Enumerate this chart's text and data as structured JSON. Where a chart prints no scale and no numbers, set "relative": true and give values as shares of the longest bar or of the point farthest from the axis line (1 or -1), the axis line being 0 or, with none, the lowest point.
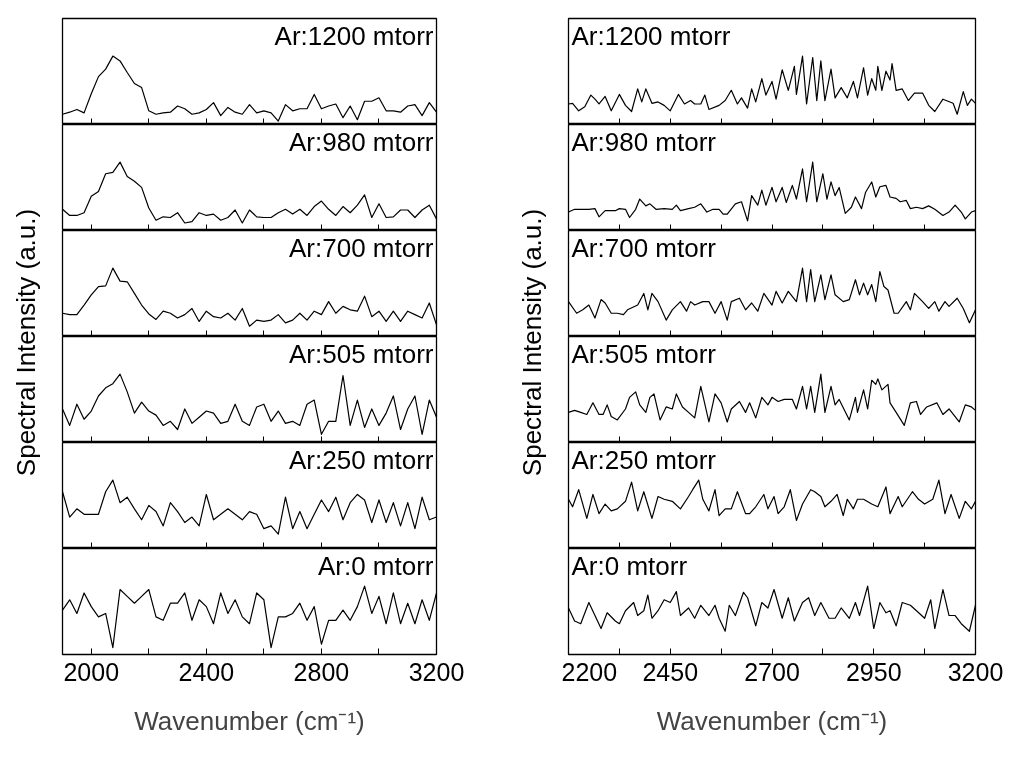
{
  "chart_data": [
    {
      "type": "line",
      "relative": true,
      "ylabel": "Spectral Intensity (a.u.)",
      "annotations": [
        "Ar:1200 mtorr"
      ],
      "xlim": [
        1900,
        3200
      ],
      "xticks": [
        2000,
        {
          "value": 2200,
          "label": null
        },
        2400,
        {
          "value": 2600,
          "label": null
        },
        2800,
        {
          "value": 3000,
          "label": null
        },
        3200
      ],
      "tick_labels": false,
      "x": [
        1900,
        1925,
        1950,
        1975,
        2000,
        2025,
        2050,
        2075,
        2100,
        2125,
        2150,
        2175,
        2200,
        2225,
        2250,
        2275,
        2300,
        2325,
        2350,
        2375,
        2400,
        2425,
        2450,
        2475,
        2500,
        2525,
        2550,
        2575,
        2600,
        2625,
        2650,
        2675,
        2700,
        2725,
        2750,
        2775,
        2800,
        2825,
        2850,
        2875,
        2900,
        2925,
        2950,
        2975,
        3000,
        3025,
        3050,
        3075,
        3100,
        3125,
        3150,
        3175,
        3200
      ],
      "series": [
        {
          "color": "#000000",
          "values": [
            0.15,
            0.18,
            0.22,
            0.17,
            0.45,
            0.7,
            0.81,
            1.0,
            0.93,
            0.76,
            0.6,
            0.54,
            0.2,
            0.15,
            0.17,
            0.18,
            0.27,
            0.23,
            0.15,
            0.17,
            0.22,
            0.32,
            0.13,
            0.25,
            0.18,
            0.15,
            0.29,
            0.17,
            0.2,
            0.17,
            0.05,
            0.29,
            0.2,
            0.23,
            0.23,
            0.44,
            0.23,
            0.27,
            0.3,
            0.1,
            0.27,
            0.07,
            0.34,
            0.34,
            0.39,
            0.2,
            0.2,
            0.18,
            0.27,
            0.29,
            0.13,
            0.32,
            0.18
          ]
        }
      ]
    },
    {
      "type": "line",
      "relative": true,
      "annotations": [
        "Ar:980 mtorr"
      ],
      "xlim": [
        1900,
        3200
      ],
      "xticks": [
        2000,
        {
          "value": 2200,
          "label": null
        },
        2400,
        {
          "value": 2600,
          "label": null
        },
        2800,
        {
          "value": 3000,
          "label": null
        },
        3200
      ],
      "tick_labels": false,
      "x": [
        1900,
        1925,
        1950,
        1975,
        2000,
        2025,
        2050,
        2075,
        2100,
        2125,
        2150,
        2175,
        2200,
        2225,
        2250,
        2275,
        2300,
        2325,
        2350,
        2375,
        2400,
        2425,
        2450,
        2475,
        2500,
        2525,
        2550,
        2575,
        2600,
        2625,
        2650,
        2675,
        2700,
        2725,
        2750,
        2775,
        2800,
        2825,
        2850,
        2875,
        2900,
        2925,
        2950,
        2975,
        3000,
        3025,
        3050,
        3075,
        3100,
        3125,
        3150,
        3175,
        3200
      ],
      "series": [
        {
          "color": "#000000",
          "values": [
            0.31,
            0.22,
            0.22,
            0.26,
            0.5,
            0.57,
            0.83,
            0.85,
            1.0,
            0.79,
            0.72,
            0.63,
            0.33,
            0.15,
            0.2,
            0.19,
            0.26,
            0.11,
            0.13,
            0.26,
            0.22,
            0.24,
            0.15,
            0.19,
            0.3,
            0.11,
            0.3,
            0.2,
            0.19,
            0.19,
            0.26,
            0.31,
            0.24,
            0.31,
            0.22,
            0.35,
            0.43,
            0.31,
            0.22,
            0.35,
            0.26,
            0.37,
            0.52,
            0.19,
            0.39,
            0.19,
            0.2,
            0.3,
            0.3,
            0.19,
            0.3,
            0.37,
            0.17
          ]
        }
      ]
    },
    {
      "type": "line",
      "relative": true,
      "annotations": [
        "Ar:700 mtorr"
      ],
      "xlim": [
        1900,
        3200
      ],
      "xticks": [
        2000,
        {
          "value": 2200,
          "label": null
        },
        2400,
        {
          "value": 2600,
          "label": null
        },
        2800,
        {
          "value": 3000,
          "label": null
        },
        3200
      ],
      "tick_labels": false,
      "x": [
        1900,
        1925,
        1950,
        1975,
        2000,
        2025,
        2050,
        2075,
        2100,
        2125,
        2150,
        2175,
        2200,
        2225,
        2250,
        2275,
        2300,
        2325,
        2350,
        2375,
        2400,
        2425,
        2450,
        2475,
        2500,
        2525,
        2550,
        2575,
        2600,
        2625,
        2650,
        2675,
        2700,
        2725,
        2750,
        2775,
        2800,
        2825,
        2850,
        2875,
        2900,
        2925,
        2950,
        2975,
        3000,
        3025,
        3050,
        3075,
        3100,
        3125,
        3150,
        3175,
        3200
      ],
      "series": [
        {
          "color": "#000000",
          "values": [
            0.34,
            0.32,
            0.32,
            0.46,
            0.61,
            0.73,
            0.74,
            1.0,
            0.81,
            0.8,
            0.63,
            0.46,
            0.33,
            0.25,
            0.37,
            0.34,
            0.27,
            0.32,
            0.41,
            0.22,
            0.37,
            0.29,
            0.27,
            0.34,
            0.24,
            0.41,
            0.15,
            0.24,
            0.22,
            0.24,
            0.32,
            0.2,
            0.24,
            0.34,
            0.24,
            0.37,
            0.32,
            0.51,
            0.34,
            0.44,
            0.39,
            0.37,
            0.59,
            0.29,
            0.37,
            0.22,
            0.37,
            0.22,
            0.37,
            0.32,
            0.27,
            0.49,
            0.17
          ]
        }
      ]
    },
    {
      "type": "line",
      "relative": true,
      "annotations": [
        "Ar:505 mtorr"
      ],
      "xlim": [
        1900,
        3200
      ],
      "xticks": [
        2000,
        {
          "value": 2200,
          "label": null
        },
        2400,
        {
          "value": 2600,
          "label": null
        },
        2800,
        {
          "value": 3000,
          "label": null
        },
        3200
      ],
      "tick_labels": false,
      "x": [
        1900,
        1925,
        1950,
        1975,
        2000,
        2025,
        2050,
        2075,
        2100,
        2125,
        2150,
        2175,
        2200,
        2225,
        2250,
        2275,
        2300,
        2325,
        2350,
        2375,
        2400,
        2425,
        2450,
        2475,
        2500,
        2525,
        2550,
        2575,
        2600,
        2625,
        2650,
        2675,
        2700,
        2725,
        2750,
        2775,
        2800,
        2825,
        2850,
        2875,
        2900,
        2925,
        2950,
        2975,
        3000,
        3025,
        3050,
        3075,
        3100,
        3125,
        3150,
        3175,
        3200
      ],
      "series": [
        {
          "color": "#000000",
          "values": [
            0.49,
            0.25,
            0.56,
            0.34,
            0.46,
            0.68,
            0.8,
            0.86,
            1.0,
            0.74,
            0.43,
            0.59,
            0.46,
            0.4,
            0.25,
            0.31,
            0.19,
            0.49,
            0.28,
            0.37,
            0.46,
            0.43,
            0.28,
            0.31,
            0.56,
            0.31,
            0.25,
            0.52,
            0.56,
            0.31,
            0.46,
            0.28,
            0.31,
            0.25,
            0.56,
            0.62,
            0.12,
            0.31,
            0.31,
            0.98,
            0.25,
            0.62,
            0.22,
            0.49,
            0.25,
            0.43,
            0.68,
            0.19,
            0.49,
            0.68,
            0.12,
            0.62,
            0.37
          ]
        }
      ]
    },
    {
      "type": "line",
      "relative": true,
      "annotations": [
        "Ar:250 mtorr"
      ],
      "xlim": [
        1900,
        3200
      ],
      "xticks": [
        2000,
        {
          "value": 2200,
          "label": null
        },
        2400,
        {
          "value": 2600,
          "label": null
        },
        2800,
        {
          "value": 3000,
          "label": null
        },
        3200
      ],
      "tick_labels": false,
      "x": [
        1900,
        1925,
        1950,
        1975,
        2000,
        2025,
        2050,
        2075,
        2100,
        2125,
        2150,
        2175,
        2200,
        2225,
        2250,
        2275,
        2300,
        2325,
        2350,
        2375,
        2400,
        2425,
        2450,
        2475,
        2500,
        2525,
        2550,
        2575,
        2600,
        2625,
        2650,
        2675,
        2700,
        2725,
        2750,
        2775,
        2800,
        2825,
        2850,
        2875,
        2900,
        2925,
        2950,
        2975,
        3000,
        3025,
        3050,
        3075,
        3100,
        3125,
        3150,
        3175,
        3200
      ],
      "series": [
        {
          "color": "#000000",
          "values": [
            0.83,
            0.46,
            0.58,
            0.5,
            0.5,
            0.5,
            0.83,
            1.0,
            0.67,
            0.75,
            0.58,
            0.42,
            0.63,
            0.54,
            0.33,
            0.67,
            0.54,
            0.38,
            0.46,
            0.33,
            0.79,
            0.42,
            0.5,
            0.58,
            0.5,
            0.42,
            0.54,
            0.5,
            0.29,
            0.33,
            0.21,
            0.75,
            0.29,
            0.54,
            0.29,
            0.5,
            0.71,
            0.54,
            0.75,
            0.42,
            0.67,
            0.79,
            0.71,
            0.38,
            0.71,
            0.38,
            0.67,
            0.33,
            0.67,
            0.29,
            0.75,
            0.42,
            0.46
          ]
        }
      ]
    },
    {
      "type": "line",
      "relative": true,
      "xlabel": "Wavenumber (cm⁻¹)",
      "annotations": [
        "Ar:0 mtorr"
      ],
      "xlim": [
        1900,
        3200
      ],
      "xticks": [
        2000,
        {
          "value": 2200,
          "label": null
        },
        2400,
        {
          "value": 2600,
          "label": null
        },
        2800,
        {
          "value": 3000,
          "label": null
        },
        3200
      ],
      "tick_labels": "x",
      "x": [
        1900,
        1925,
        1950,
        1975,
        2000,
        2025,
        2050,
        2075,
        2100,
        2125,
        2150,
        2175,
        2200,
        2225,
        2250,
        2275,
        2300,
        2325,
        2350,
        2375,
        2400,
        2425,
        2450,
        2475,
        2500,
        2525,
        2550,
        2575,
        2600,
        2625,
        2650,
        2675,
        2700,
        2725,
        2750,
        2775,
        2800,
        2825,
        2850,
        2875,
        2900,
        2925,
        2950,
        2975,
        3000,
        3025,
        3050,
        3075,
        3100,
        3125,
        3150,
        3175,
        3200
      ],
      "series": [
        {
          "color": "#000000",
          "values": [
            0.65,
            0.8,
            0.6,
            0.9,
            0.7,
            0.55,
            0.6,
            0.1,
            0.95,
            0.85,
            0.75,
            0.85,
            0.95,
            0.55,
            0.5,
            0.75,
            0.75,
            0.9,
            0.5,
            0.8,
            0.7,
            0.45,
            0.9,
            0.6,
            0.8,
            0.55,
            0.45,
            0.9,
            0.8,
            0.1,
            0.55,
            0.55,
            0.6,
            0.75,
            0.5,
            0.7,
            0.15,
            0.5,
            0.5,
            0.65,
            0.5,
            0.7,
            1.0,
            0.6,
            0.85,
            0.45,
            0.9,
            0.45,
            0.75,
            0.45,
            0.8,
            0.5,
            0.9
          ]
        }
      ]
    },
    {
      "type": "line",
      "relative": true,
      "ylabel": "Spectral Intensity (a.u.)",
      "annotations": [
        "Ar:1200 mtorr"
      ],
      "xlim": [
        2200,
        3200
      ],
      "xticks": [
        2200,
        {
          "value": 2325,
          "label": null
        },
        2450,
        {
          "value": 2575,
          "label": null
        },
        2700,
        {
          "value": 2825,
          "label": null
        },
        2950,
        {
          "value": 3075,
          "label": null
        },
        3200
      ],
      "tick_labels": false,
      "x": [
        2200,
        2210,
        2225,
        2240,
        2255,
        2265,
        2275,
        2290,
        2305,
        2325,
        2340,
        2355,
        2370,
        2380,
        2390,
        2405,
        2420,
        2435,
        2450,
        2470,
        2485,
        2500,
        2510,
        2525,
        2535,
        2545,
        2570,
        2585,
        2600,
        2615,
        2625,
        2640,
        2650,
        2660,
        2675,
        2685,
        2700,
        2710,
        2725,
        2740,
        2755,
        2760,
        2775,
        2785,
        2800,
        2810,
        2820,
        2830,
        2845,
        2855,
        2870,
        2885,
        2900,
        2910,
        2925,
        2935,
        2945,
        2955,
        2960,
        2970,
        2980,
        2990,
        2995,
        3005,
        3020,
        3035,
        3050,
        3070,
        3085,
        3100,
        3120,
        3145,
        3155,
        3170,
        3180,
        3190,
        3200
      ],
      "series": [
        {
          "color": "#000000",
          "values": [
            0.3,
            0.31,
            0.2,
            0.26,
            0.43,
            0.37,
            0.3,
            0.41,
            0.2,
            0.44,
            0.28,
            0.19,
            0.52,
            0.33,
            0.52,
            0.31,
            0.33,
            0.28,
            0.2,
            0.44,
            0.3,
            0.35,
            0.3,
            0.3,
            0.43,
            0.22,
            0.28,
            0.35,
            0.5,
            0.3,
            0.39,
            0.24,
            0.52,
            0.33,
            0.67,
            0.43,
            0.63,
            0.37,
            0.8,
            0.5,
            0.85,
            0.44,
            1.0,
            0.3,
            0.98,
            0.35,
            0.93,
            0.35,
            0.81,
            0.39,
            0.54,
            0.39,
            0.63,
            0.39,
            0.83,
            0.43,
            0.67,
            0.5,
            0.85,
            0.5,
            0.78,
            0.65,
            0.89,
            0.5,
            0.52,
            0.35,
            0.46,
            0.46,
            0.28,
            0.19,
            0.37,
            0.31,
            0.15,
            0.48,
            0.28,
            0.37,
            0.31
          ]
        }
      ]
    },
    {
      "type": "line",
      "relative": true,
      "annotations": [
        "Ar:980 mtorr"
      ],
      "xlim": [
        2200,
        3200
      ],
      "xticks": [
        2200,
        {
          "value": 2325,
          "label": null
        },
        2450,
        {
          "value": 2575,
          "label": null
        },
        2700,
        {
          "value": 2825,
          "label": null
        },
        2950,
        {
          "value": 3075,
          "label": null
        },
        3200
      ],
      "tick_labels": false,
      "x": [
        2200,
        2215,
        2230,
        2250,
        2265,
        2275,
        2290,
        2315,
        2325,
        2340,
        2350,
        2365,
        2375,
        2390,
        2400,
        2415,
        2435,
        2455,
        2465,
        2475,
        2495,
        2510,
        2525,
        2540,
        2555,
        2570,
        2580,
        2590,
        2610,
        2625,
        2640,
        2650,
        2665,
        2675,
        2685,
        2700,
        2710,
        2725,
        2735,
        2750,
        2760,
        2775,
        2785,
        2800,
        2810,
        2825,
        2835,
        2845,
        2855,
        2865,
        2880,
        2895,
        2905,
        2920,
        2930,
        2945,
        2955,
        2965,
        2980,
        2990,
        3005,
        3015,
        3030,
        3040,
        3055,
        3070,
        3085,
        3100,
        3120,
        3135,
        3150,
        3165,
        3175,
        3190,
        3200
      ],
      "series": [
        {
          "color": "#000000",
          "values": [
            0.27,
            0.31,
            0.31,
            0.31,
            0.32,
            0.2,
            0.29,
            0.29,
            0.32,
            0.31,
            0.19,
            0.31,
            0.46,
            0.36,
            0.39,
            0.31,
            0.32,
            0.31,
            0.37,
            0.29,
            0.32,
            0.34,
            0.39,
            0.27,
            0.31,
            0.31,
            0.24,
            0.24,
            0.39,
            0.42,
            0.14,
            0.51,
            0.37,
            0.59,
            0.37,
            0.63,
            0.42,
            0.63,
            0.41,
            0.66,
            0.46,
            0.9,
            0.42,
            1.0,
            0.42,
            0.83,
            0.46,
            0.71,
            0.51,
            0.63,
            0.25,
            0.34,
            0.49,
            0.32,
            0.56,
            0.71,
            0.49,
            0.64,
            0.66,
            0.49,
            0.47,
            0.42,
            0.44,
            0.32,
            0.34,
            0.32,
            0.36,
            0.31,
            0.22,
            0.27,
            0.37,
            0.27,
            0.17,
            0.27,
            0.29
          ]
        }
      ]
    },
    {
      "type": "line",
      "relative": true,
      "annotations": [
        "Ar:700 mtorr"
      ],
      "xlim": [
        2200,
        3200
      ],
      "xticks": [
        2200,
        {
          "value": 2325,
          "label": null
        },
        2450,
        {
          "value": 2575,
          "label": null
        },
        2700,
        {
          "value": 2825,
          "label": null
        },
        2950,
        {
          "value": 3075,
          "label": null
        },
        3200
      ],
      "tick_labels": false,
      "x": [
        2200,
        2220,
        2235,
        2250,
        2265,
        2280,
        2290,
        2305,
        2320,
        2335,
        2345,
        2370,
        2385,
        2395,
        2405,
        2420,
        2440,
        2455,
        2475,
        2490,
        2500,
        2510,
        2530,
        2545,
        2560,
        2575,
        2590,
        2600,
        2620,
        2635,
        2650,
        2665,
        2680,
        2700,
        2710,
        2725,
        2740,
        2760,
        2775,
        2785,
        2795,
        2805,
        2820,
        2830,
        2845,
        2855,
        2875,
        2890,
        2905,
        2915,
        2925,
        2935,
        2945,
        2955,
        2965,
        2975,
        2985,
        3000,
        3010,
        3030,
        3040,
        3050,
        3070,
        3085,
        3100,
        3110,
        3125,
        3135,
        3155,
        3170,
        3185,
        3200
      ],
      "series": [
        {
          "color": "#000000",
          "values": [
            0.51,
            0.34,
            0.39,
            0.46,
            0.27,
            0.54,
            0.49,
            0.34,
            0.34,
            0.32,
            0.39,
            0.46,
            0.63,
            0.39,
            0.63,
            0.51,
            0.24,
            0.39,
            0.51,
            0.37,
            0.51,
            0.46,
            0.51,
            0.51,
            0.34,
            0.51,
            0.24,
            0.51,
            0.56,
            0.39,
            0.49,
            0.37,
            0.63,
            0.46,
            0.66,
            0.49,
            0.66,
            0.51,
            1.0,
            0.51,
            0.98,
            0.51,
            0.9,
            0.54,
            0.9,
            0.61,
            0.51,
            0.54,
            0.83,
            0.61,
            0.78,
            0.61,
            0.76,
            0.51,
            0.95,
            0.73,
            0.68,
            0.34,
            0.34,
            0.51,
            0.39,
            0.63,
            0.51,
            0.41,
            0.51,
            0.37,
            0.51,
            0.44,
            0.56,
            0.41,
            0.2,
            0.39
          ]
        }
      ]
    },
    {
      "type": "line",
      "relative": true,
      "annotations": [
        "Ar:505 mtorr"
      ],
      "xlim": [
        2200,
        3200
      ],
      "xticks": [
        2200,
        {
          "value": 2325,
          "label": null
        },
        2450,
        {
          "value": 2575,
          "label": null
        },
        2700,
        {
          "value": 2825,
          "label": null
        },
        2950,
        {
          "value": 3075,
          "label": null
        },
        3200
      ],
      "tick_labels": false,
      "x": [
        2200,
        2215,
        2230,
        2245,
        2260,
        2275,
        2285,
        2295,
        2305,
        2320,
        2340,
        2350,
        2365,
        2375,
        2390,
        2400,
        2410,
        2425,
        2440,
        2455,
        2465,
        2480,
        2495,
        2510,
        2525,
        2545,
        2560,
        2575,
        2590,
        2600,
        2620,
        2635,
        2645,
        2660,
        2675,
        2690,
        2700,
        2715,
        2730,
        2750,
        2760,
        2775,
        2785,
        2795,
        2805,
        2820,
        2830,
        2845,
        2855,
        2865,
        2890,
        2905,
        2910,
        2925,
        2935,
        2945,
        2955,
        2960,
        2970,
        2985,
        2990,
        3005,
        3025,
        3040,
        3055,
        3065,
        3080,
        3105,
        3120,
        3135,
        3160,
        3175,
        3190,
        3200
      ],
      "series": [
        {
          "color": "#000000",
          "values": [
            0.44,
            0.47,
            0.44,
            0.41,
            0.58,
            0.41,
            0.41,
            0.55,
            0.38,
            0.33,
            0.49,
            0.66,
            0.74,
            0.55,
            0.44,
            0.66,
            0.71,
            0.33,
            0.52,
            0.49,
            0.71,
            0.52,
            0.44,
            0.36,
            0.82,
            0.3,
            0.71,
            0.58,
            0.3,
            0.49,
            0.6,
            0.44,
            0.58,
            0.36,
            0.66,
            0.55,
            0.66,
            0.6,
            0.63,
            0.63,
            0.49,
            0.82,
            0.49,
            0.82,
            0.44,
            1.0,
            0.44,
            0.82,
            0.55,
            0.63,
            0.33,
            0.66,
            0.44,
            0.77,
            0.49,
            0.91,
            0.85,
            0.93,
            0.77,
            0.85,
            0.58,
            0.44,
            0.25,
            0.58,
            0.6,
            0.41,
            0.52,
            0.58,
            0.41,
            0.49,
            0.3,
            0.55,
            0.52,
            0.47
          ]
        }
      ]
    },
    {
      "type": "line",
      "relative": true,
      "annotations": [
        "Ar:250 mtorr"
      ],
      "xlim": [
        2200,
        3200
      ],
      "xticks": [
        2200,
        {
          "value": 2325,
          "label": null
        },
        2450,
        {
          "value": 2575,
          "label": null
        },
        2700,
        {
          "value": 2825,
          "label": null
        },
        2950,
        {
          "value": 3075,
          "label": null
        },
        3200
      ],
      "tick_labels": false,
      "x": [
        2200,
        2210,
        2225,
        2245,
        2260,
        2275,
        2290,
        2305,
        2320,
        2340,
        2355,
        2370,
        2385,
        2405,
        2420,
        2435,
        2455,
        2475,
        2495,
        2505,
        2520,
        2530,
        2545,
        2560,
        2570,
        2585,
        2600,
        2615,
        2635,
        2645,
        2660,
        2680,
        2690,
        2705,
        2715,
        2730,
        2745,
        2760,
        2775,
        2795,
        2805,
        2820,
        2830,
        2845,
        2860,
        2875,
        2885,
        2900,
        2910,
        2925,
        2945,
        2960,
        2980,
        2990,
        3010,
        3020,
        3045,
        3060,
        3075,
        3095,
        3110,
        3125,
        3140,
        3160,
        3175,
        3190,
        3200
      ],
      "series": [
        {
          "color": "#000000",
          "values": [
            0.72,
            0.61,
            0.86,
            0.44,
            0.79,
            0.51,
            0.65,
            0.55,
            0.58,
            0.69,
            0.97,
            0.55,
            0.83,
            0.44,
            0.76,
            0.72,
            0.69,
            0.58,
            0.76,
            0.86,
            1.0,
            0.72,
            0.55,
            0.86,
            0.48,
            0.58,
            0.58,
            0.83,
            0.51,
            0.51,
            0.61,
            0.79,
            0.58,
            0.76,
            0.51,
            0.61,
            0.86,
            0.41,
            0.65,
            0.86,
            0.83,
            0.76,
            0.61,
            0.69,
            0.79,
            0.48,
            0.72,
            0.58,
            0.72,
            0.72,
            0.65,
            0.61,
            0.9,
            0.51,
            0.76,
            0.61,
            0.83,
            0.72,
            0.65,
            0.72,
            1.0,
            0.51,
            0.79,
            0.44,
            0.69,
            0.58,
            0.69
          ]
        }
      ]
    },
    {
      "type": "line",
      "relative": true,
      "xlabel": "Wavenumber (cm⁻¹)",
      "annotations": [
        "Ar:0 mtorr"
      ],
      "xlim": [
        2200,
        3200
      ],
      "xticks": [
        2200,
        {
          "value": 2325,
          "label": null
        },
        2450,
        {
          "value": 2575,
          "label": null
        },
        2700,
        {
          "value": 2825,
          "label": null
        },
        2950,
        {
          "value": 3075,
          "label": null
        },
        3200
      ],
      "tick_labels": "x",
      "x": [
        2200,
        2215,
        2230,
        2250,
        2265,
        2280,
        2295,
        2315,
        2325,
        2340,
        2360,
        2370,
        2385,
        2395,
        2405,
        2420,
        2435,
        2450,
        2465,
        2475,
        2495,
        2510,
        2525,
        2545,
        2560,
        2570,
        2585,
        2595,
        2610,
        2630,
        2640,
        2660,
        2675,
        2690,
        2705,
        2725,
        2740,
        2755,
        2775,
        2790,
        2805,
        2820,
        2840,
        2855,
        2870,
        2890,
        2905,
        2915,
        2935,
        2950,
        2965,
        2980,
        2990,
        3005,
        3020,
        3040,
        3055,
        3075,
        3090,
        3100,
        3120,
        3135,
        3150,
        3165,
        3185,
        3200
      ],
      "series": [
        {
          "color": "#000000",
          "values": [
            0.68,
            0.49,
            0.45,
            0.76,
            0.57,
            0.38,
            0.61,
            0.49,
            0.45,
            0.64,
            0.76,
            0.57,
            0.64,
            0.87,
            0.53,
            0.64,
            0.8,
            0.76,
            0.92,
            0.57,
            0.68,
            0.53,
            0.72,
            0.57,
            0.72,
            0.53,
            0.34,
            0.72,
            0.57,
            0.91,
            0.83,
            0.42,
            0.76,
            0.68,
            0.95,
            0.53,
            0.83,
            0.49,
            0.76,
            0.83,
            0.57,
            0.76,
            0.53,
            0.53,
            0.68,
            0.53,
            0.76,
            0.57,
            1.0,
            0.38,
            0.76,
            0.61,
            0.64,
            0.42,
            0.76,
            0.72,
            0.64,
            0.53,
            0.8,
            0.38,
            0.95,
            0.57,
            0.57,
            0.45,
            0.34,
            0.72
          ]
        }
      ]
    }
  ]
}
